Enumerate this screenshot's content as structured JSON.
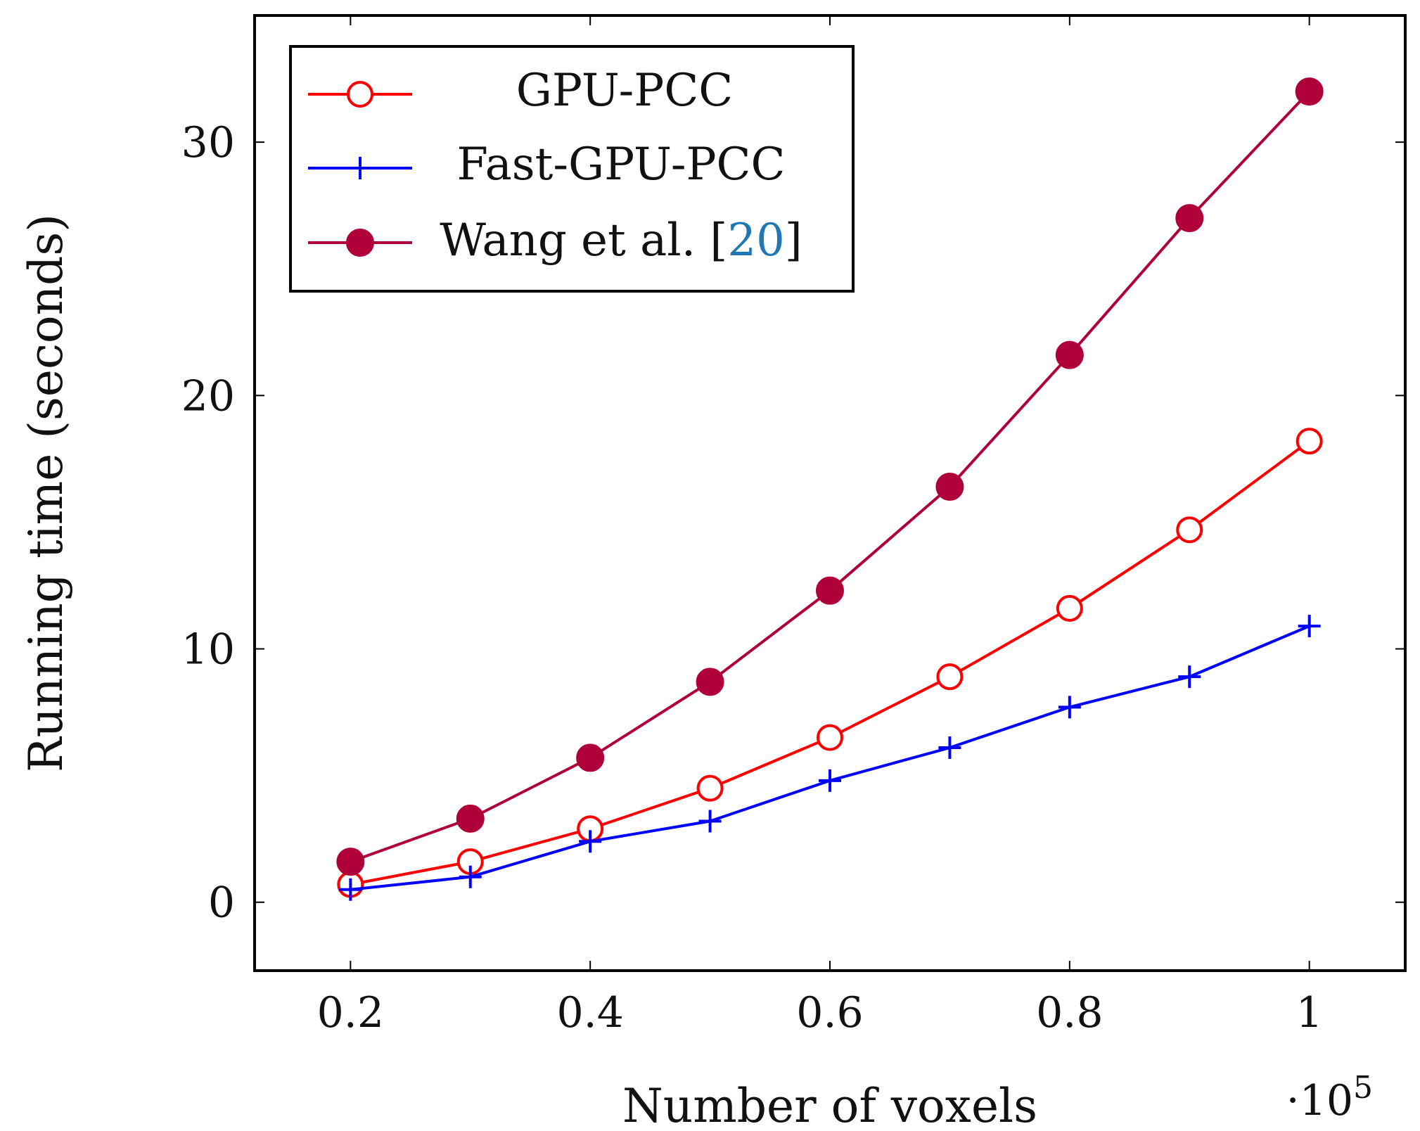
{
  "chart_data": {
    "type": "line",
    "x": [
      0.2,
      0.3,
      0.4,
      0.5,
      0.6,
      0.7,
      0.8,
      0.9,
      1.0
    ],
    "series": [
      {
        "name": "GPU-PCC",
        "marker": "open-circle",
        "color": "#ff0000",
        "values": [
          0.7,
          1.6,
          2.9,
          4.5,
          6.5,
          8.9,
          11.6,
          14.7,
          18.2
        ]
      },
      {
        "name": "Fast-GPU-PCC",
        "marker": "plus",
        "color": "#0000ff",
        "values": [
          0.5,
          1.0,
          2.4,
          3.2,
          4.8,
          6.1,
          7.7,
          8.9,
          10.9
        ]
      },
      {
        "name": "Wang et al. [20]",
        "marker": "filled-circle",
        "color": "#b0003a",
        "values": [
          1.6,
          3.3,
          5.7,
          8.7,
          12.3,
          16.4,
          21.6,
          27.0,
          32.0
        ]
      }
    ],
    "legend_citation": {
      "prefix": "Wang et al. [",
      "ref": "20",
      "suffix": "]",
      "ref_color": "#1f77b4"
    },
    "xlabel": "Number of voxels",
    "ylabel": "Running time (seconds)",
    "x_multiplier": "·10",
    "x_multiplier_exp": "5",
    "xlim": [
      0.12,
      1.08
    ],
    "ylim": [
      -2.7,
      35
    ],
    "xticks": [
      0.2,
      0.4,
      0.6,
      0.8,
      1.0
    ],
    "xtick_labels": [
      "0.2",
      "0.4",
      "0.6",
      "0.8",
      "1"
    ],
    "yticks": [
      0,
      10,
      20,
      30
    ],
    "ytick_labels": [
      "0",
      "10",
      "20",
      "30"
    ],
    "grid": false,
    "legend_position": "top-left"
  }
}
